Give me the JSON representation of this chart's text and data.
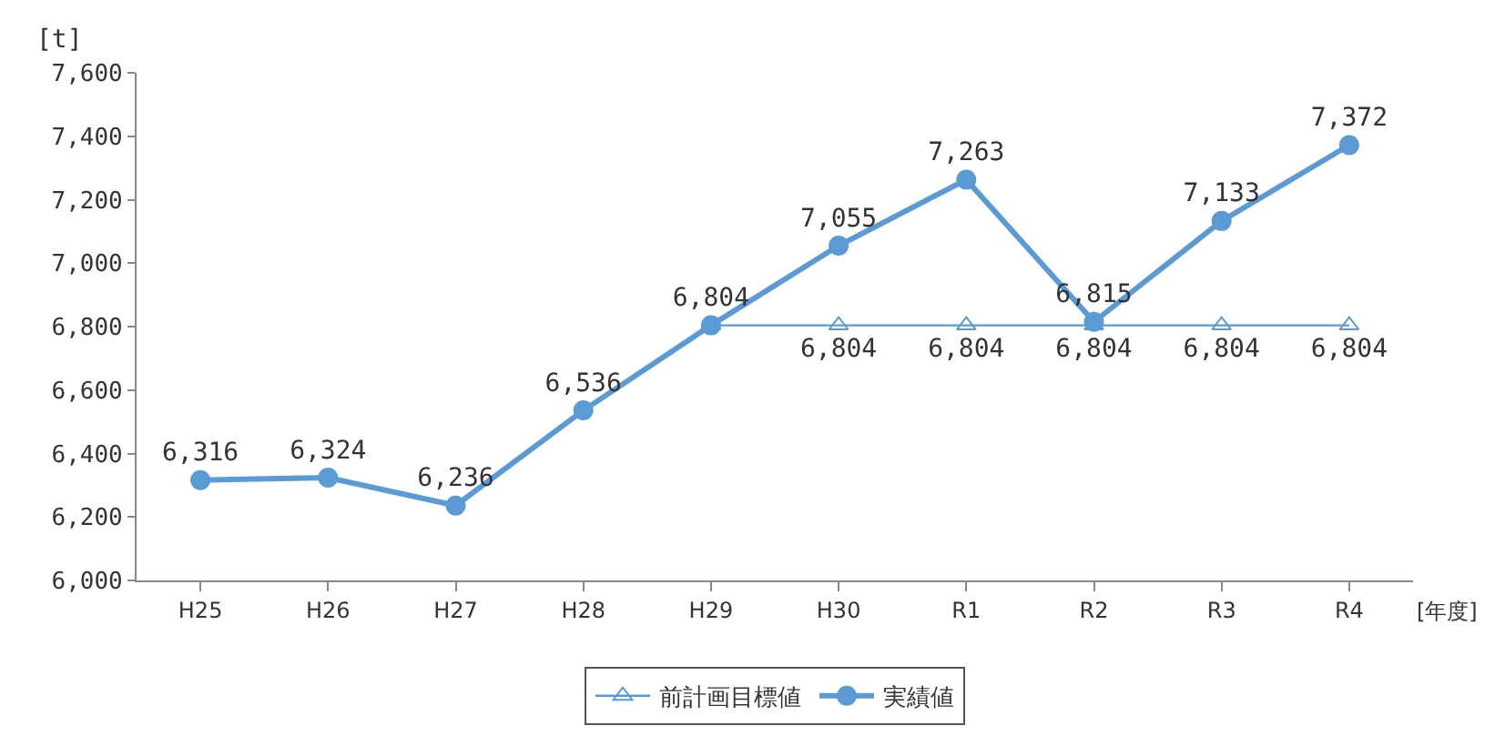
{
  "chart_data": {
    "type": "line",
    "xlabel": "[年度]",
    "ylabel": "[t]",
    "categories": [
      "H25",
      "H26",
      "H27",
      "H28",
      "H29",
      "H30",
      "R1",
      "R2",
      "R3",
      "R4"
    ],
    "series": [
      {
        "name": "前計画目標値",
        "color": "#5b9bd5",
        "marker": "triangle",
        "values": [
          null,
          null,
          null,
          null,
          6804,
          6804,
          6804,
          6804,
          6804,
          6804
        ],
        "value_labels": [
          null,
          null,
          null,
          null,
          null,
          "6,804",
          "6,804",
          "6,804",
          "6,804",
          "6,804"
        ]
      },
      {
        "name": "実績値",
        "color": "#5b9bd5",
        "marker": "circle",
        "values": [
          6316,
          6324,
          6236,
          6536,
          6804,
          7055,
          7263,
          6815,
          7133,
          7372
        ],
        "value_labels": [
          "6,316",
          "6,324",
          "6,236",
          "6,536",
          "6,804",
          "7,055",
          "7,263",
          "6,815",
          "7,133",
          "7,372"
        ]
      }
    ],
    "ylim": [
      6000,
      7600
    ],
    "yticks": [
      {
        "value": 6000,
        "label": "6,000"
      },
      {
        "value": 6200,
        "label": "6,200"
      },
      {
        "value": 6400,
        "label": "6,400"
      },
      {
        "value": 6600,
        "label": "6,600"
      },
      {
        "value": 6800,
        "label": "6,800"
      },
      {
        "value": 7000,
        "label": "7,000"
      },
      {
        "value": 7200,
        "label": "7,200"
      },
      {
        "value": 7400,
        "label": "7,400"
      },
      {
        "value": 7600,
        "label": "7,600"
      }
    ],
    "legend": "bottom",
    "line_style": "solid"
  }
}
